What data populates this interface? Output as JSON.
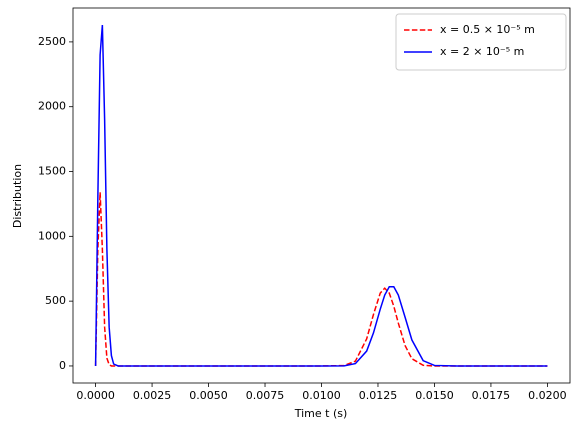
{
  "chart_data": {
    "type": "line",
    "xlabel": "Time t (s)",
    "ylabel": "Distribution",
    "x": [
      0,
      0.0001,
      0.0002,
      0.0003,
      0.0004,
      0.0005,
      0.0006,
      0.0007,
      0.0008,
      0.001,
      0.005,
      0.01,
      0.011,
      0.0115,
      0.012,
      0.0123,
      0.0126,
      0.0128,
      0.013,
      0.0132,
      0.0134,
      0.0137,
      0.014,
      0.0145,
      0.015,
      0.016,
      0.02
    ],
    "series": [
      {
        "name": "x = 0.5 × 10⁻⁵ m",
        "color": "#ff0000",
        "dashed": true,
        "values": [
          0,
          900,
          1340,
          900,
          300,
          60,
          10,
          0,
          0,
          0,
          0,
          0,
          3,
          37,
          209,
          397,
          562,
          600,
          562,
          461,
          331,
          157,
          56,
          5,
          0,
          0,
          0
        ]
      },
      {
        "name": "x = 2 × 10⁻⁵ m",
        "color": "#0000ff",
        "dashed": false,
        "values": [
          0,
          1300,
          2400,
          2630,
          1900,
          900,
          300,
          80,
          15,
          0,
          0,
          0,
          1,
          18,
          115,
          255,
          438,
          547,
          611,
          611,
          547,
          376,
          201,
          41,
          4,
          0,
          0
        ]
      }
    ],
    "xlim": [
      -0.001,
      0.021
    ],
    "ylim": [
      -131.5,
      2761.5
    ],
    "xticks": [
      {
        "value": 0,
        "label": "0.0000"
      },
      {
        "value": 0.0025,
        "label": "0.0025"
      },
      {
        "value": 0.005,
        "label": "0.0050"
      },
      {
        "value": 0.0075,
        "label": "0.0075"
      },
      {
        "value": 0.01,
        "label": "0.0100"
      },
      {
        "value": 0.0125,
        "label": "0.0125"
      },
      {
        "value": 0.015,
        "label": "0.0150"
      },
      {
        "value": 0.0175,
        "label": "0.0175"
      },
      {
        "value": 0.02,
        "label": "0.0200"
      }
    ],
    "yticks": [
      0,
      500,
      1000,
      1500,
      2000,
      2500
    ],
    "grid": false,
    "legend": "upper right"
  }
}
